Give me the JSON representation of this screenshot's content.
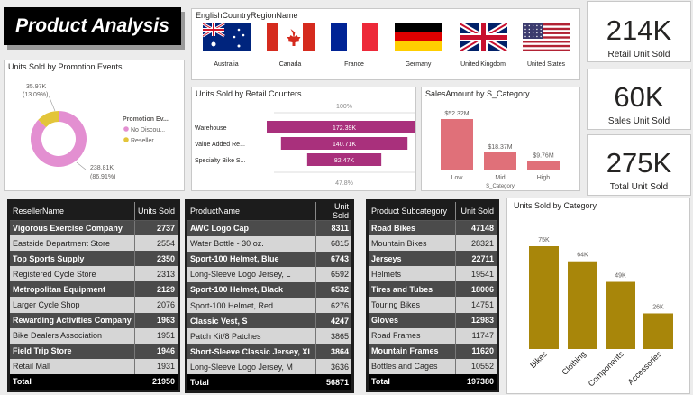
{
  "header": {
    "title": "Product Analysis"
  },
  "country_slicer": {
    "title": "EnglishCountryRegionName",
    "countries": [
      {
        "name": "Australia",
        "flag": "australia-flag-icon"
      },
      {
        "name": "Canada",
        "flag": "canada-flag-icon"
      },
      {
        "name": "France",
        "flag": "france-flag-icon"
      },
      {
        "name": "Germany",
        "flag": "germany-flag-icon"
      },
      {
        "name": "United Kingdom",
        "flag": "uk-flag-icon"
      },
      {
        "name": "United States",
        "flag": "us-flag-icon"
      }
    ]
  },
  "kpis": [
    {
      "value": "214K",
      "label": "Retail Unit Sold"
    },
    {
      "value": "60K",
      "label": "Sales Unit Sold"
    },
    {
      "value": "275K",
      "label": "Total Unit Sold"
    }
  ],
  "promotion_donut": {
    "title": "Units Sold by Promotion Events",
    "legend_title": "Promotion Ev...",
    "chart_data": {
      "type": "pie",
      "slices": [
        {
          "label": "No Discou...",
          "value": 238.81,
          "value_text": "238.81K",
          "pct_text": "(86.91%)",
          "color": "#e38fd1"
        },
        {
          "label": "Reseller",
          "value": 35.97,
          "value_text": "35.97K",
          "pct_text": "(13.09%)",
          "color": "#e3c53a"
        }
      ]
    }
  },
  "retail_funnel": {
    "title": "Units Sold by Retail Counters",
    "top_pct": "100%",
    "bottom_pct": "47.8%",
    "chart_data": {
      "type": "bar",
      "categories": [
        "Warehouse",
        "Value Added Re...",
        "Specialty Bike S..."
      ],
      "values": [
        172.39,
        140.71,
        82.47
      ],
      "labels": [
        "172.39K",
        "140.71K",
        "82.47K"
      ],
      "color": "#a9307c"
    }
  },
  "sales_category": {
    "title": "SalesAmount by S_Category",
    "xlabel": "S_Category",
    "chart_data": {
      "type": "bar",
      "categories": [
        "Low",
        "Mid",
        "High"
      ],
      "values": [
        52.32,
        18.37,
        9.76
      ],
      "labels": [
        "$52.32M",
        "$18.37M",
        "$9.76M"
      ],
      "color": "#e07079"
    }
  },
  "reseller_table": {
    "headers": [
      "ResellerName",
      "Units Sold"
    ],
    "rows": [
      [
        "Vigorous Exercise Company",
        "2737"
      ],
      [
        "Eastside Department Store",
        "2554"
      ],
      [
        "Top Sports Supply",
        "2350"
      ],
      [
        "Registered Cycle Store",
        "2313"
      ],
      [
        "Metropolitan Equipment",
        "2129"
      ],
      [
        "Larger Cycle Shop",
        "2076"
      ],
      [
        "Rewarding Activities Company",
        "1963"
      ],
      [
        "Bike Dealers Association",
        "1951"
      ],
      [
        "Field Trip Store",
        "1946"
      ],
      [
        "Retail Mall",
        "1931"
      ]
    ],
    "total": [
      "Total",
      "21950"
    ]
  },
  "product_table": {
    "headers": [
      "ProductName",
      "Unit Sold"
    ],
    "rows": [
      [
        "AWC Logo Cap",
        "8311"
      ],
      [
        "Water Bottle - 30 oz.",
        "6815"
      ],
      [
        "Sport-100 Helmet, Blue",
        "6743"
      ],
      [
        "Long-Sleeve Logo Jersey, L",
        "6592"
      ],
      [
        "Sport-100 Helmet, Black",
        "6532"
      ],
      [
        "Sport-100 Helmet, Red",
        "6276"
      ],
      [
        "Classic Vest, S",
        "4247"
      ],
      [
        "Patch Kit/8 Patches",
        "3865"
      ],
      [
        "Short-Sleeve Classic Jersey, XL",
        "3864"
      ],
      [
        "Long-Sleeve Logo Jersey, M",
        "3636"
      ]
    ],
    "total": [
      "Total",
      "56871"
    ]
  },
  "subcategory_table": {
    "headers": [
      "Product Subcategory",
      "Unit Sold"
    ],
    "rows": [
      [
        "Road Bikes",
        "47148"
      ],
      [
        "Mountain Bikes",
        "28321"
      ],
      [
        "Jerseys",
        "22711"
      ],
      [
        "Helmets",
        "19541"
      ],
      [
        "Tires and Tubes",
        "18006"
      ],
      [
        "Touring Bikes",
        "14751"
      ],
      [
        "Gloves",
        "12983"
      ],
      [
        "Road Frames",
        "11747"
      ],
      [
        "Mountain Frames",
        "11620"
      ],
      [
        "Bottles and Cages",
        "10552"
      ]
    ],
    "total": [
      "Total",
      "197380"
    ]
  },
  "category_chart": {
    "title": "Units Sold by Category",
    "chart_data": {
      "type": "bar",
      "categories": [
        "Bikes",
        "Clothing",
        "Components",
        "Accessories"
      ],
      "values": [
        75,
        64,
        49,
        26
      ],
      "labels": [
        "75K",
        "64K",
        "49K",
        "26K"
      ],
      "color": "#a8860a"
    }
  }
}
